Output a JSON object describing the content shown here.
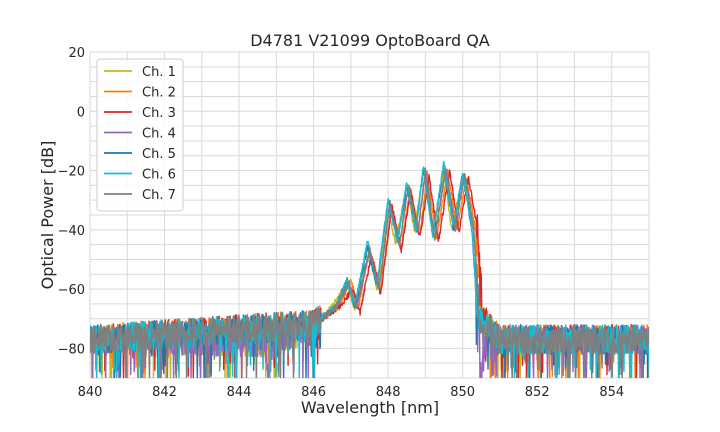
{
  "chart_data": {
    "type": "line",
    "title": "D4781 V21099 OptoBoard QA",
    "xlabel": "Wavelength [nm]",
    "ylabel": "Optical Power [dB]",
    "xlim": [
      840,
      855
    ],
    "ylim": [
      -90,
      20
    ],
    "xticks": [
      840,
      842,
      844,
      846,
      848,
      850,
      852,
      854
    ],
    "yticks": [
      20,
      0,
      -20,
      -40,
      -60,
      -80
    ],
    "xtick_labels": [
      "840",
      "842",
      "844",
      "846",
      "848",
      "850",
      "852",
      "854"
    ],
    "ytick_labels": [
      "20",
      "0",
      "−20",
      "−40",
      "−60",
      "−80"
    ],
    "grid": true,
    "legend_position": "top-left",
    "noise_floor_db": -77,
    "series": [
      {
        "name": "Ch. 1",
        "color": "#bcbd22",
        "peak_offset_nm": -0.1,
        "points": [
          [
            840,
            -77
          ],
          [
            844.9,
            -78
          ],
          [
            845.0,
            -90
          ],
          [
            845.1,
            -78
          ],
          [
            846.0,
            -72
          ],
          [
            846.5,
            -66
          ],
          [
            846.9,
            -58
          ],
          [
            847.1,
            -67
          ],
          [
            847.5,
            -48
          ],
          [
            847.7,
            -60
          ],
          [
            848.0,
            -33
          ],
          [
            848.2,
            -45
          ],
          [
            848.5,
            -25
          ],
          [
            848.7,
            -40
          ],
          [
            848.95,
            -20
          ],
          [
            849.2,
            -42
          ],
          [
            849.5,
            -20
          ],
          [
            849.7,
            -40
          ],
          [
            850.0,
            -22
          ],
          [
            850.3,
            -40
          ],
          [
            850.45,
            -70
          ],
          [
            851,
            -77
          ],
          [
            855,
            -77
          ]
        ]
      },
      {
        "name": "Ch. 2",
        "color": "#ff7f0e",
        "peak_offset_nm": 0.08,
        "points": [
          [
            840,
            -77
          ],
          [
            846.0,
            -72
          ],
          [
            846.7,
            -66
          ],
          [
            847.0,
            -57
          ],
          [
            847.2,
            -66
          ],
          [
            847.5,
            -46
          ],
          [
            847.8,
            -60
          ],
          [
            848.1,
            -32
          ],
          [
            848.35,
            -46
          ],
          [
            848.6,
            -26
          ],
          [
            848.85,
            -42
          ],
          [
            849.05,
            -21
          ],
          [
            849.3,
            -43
          ],
          [
            849.6,
            -20
          ],
          [
            849.85,
            -40
          ],
          [
            850.1,
            -22
          ],
          [
            850.35,
            -40
          ],
          [
            850.5,
            -70
          ],
          [
            851,
            -77
          ],
          [
            855,
            -77
          ]
        ]
      },
      {
        "name": "Ch. 3",
        "color": "#d62728",
        "peak_offset_nm": 0.12,
        "points": [
          [
            840,
            -77
          ],
          [
            846.0,
            -72
          ],
          [
            846.7,
            -66
          ],
          [
            847.05,
            -60
          ],
          [
            847.25,
            -68
          ],
          [
            847.55,
            -48
          ],
          [
            847.8,
            -62
          ],
          [
            848.1,
            -32
          ],
          [
            848.35,
            -47
          ],
          [
            848.6,
            -27
          ],
          [
            848.85,
            -43
          ],
          [
            849.1,
            -22
          ],
          [
            849.35,
            -44
          ],
          [
            849.65,
            -20
          ],
          [
            849.9,
            -41
          ],
          [
            850.15,
            -22
          ],
          [
            850.4,
            -40
          ],
          [
            850.55,
            -70
          ],
          [
            851,
            -77
          ],
          [
            855,
            -77
          ]
        ]
      },
      {
        "name": "Ch. 4",
        "color": "#9467bd",
        "peak_offset_nm": 0.0,
        "points": [
          [
            840,
            -77
          ],
          [
            844.7,
            -78
          ],
          [
            844.8,
            -90
          ],
          [
            844.9,
            -78
          ],
          [
            846.0,
            -72
          ],
          [
            846.6,
            -66
          ],
          [
            846.95,
            -58
          ],
          [
            847.15,
            -67
          ],
          [
            847.5,
            -47
          ],
          [
            847.75,
            -60
          ],
          [
            848.05,
            -31
          ],
          [
            848.3,
            -45
          ],
          [
            848.55,
            -25
          ],
          [
            848.8,
            -41
          ],
          [
            849.0,
            -20
          ],
          [
            849.25,
            -43
          ],
          [
            849.55,
            -19
          ],
          [
            849.8,
            -40
          ],
          [
            850.05,
            -21
          ],
          [
            850.3,
            -40
          ],
          [
            850.45,
            -70
          ],
          [
            850.5,
            -90
          ],
          [
            850.6,
            -78
          ],
          [
            851,
            -77
          ],
          [
            855,
            -77
          ]
        ]
      },
      {
        "name": "Ch. 5",
        "color": "#1f77b4",
        "peak_offset_nm": -0.05,
        "points": [
          [
            840,
            -77
          ],
          [
            846.0,
            -72
          ],
          [
            846.6,
            -66
          ],
          [
            846.9,
            -57
          ],
          [
            847.1,
            -66
          ],
          [
            847.45,
            -46
          ],
          [
            847.7,
            -59
          ],
          [
            848.0,
            -30
          ],
          [
            848.25,
            -44
          ],
          [
            848.5,
            -25
          ],
          [
            848.75,
            -40
          ],
          [
            848.95,
            -19
          ],
          [
            849.2,
            -42
          ],
          [
            849.5,
            -18
          ],
          [
            849.75,
            -40
          ],
          [
            850.0,
            -21
          ],
          [
            850.25,
            -40
          ],
          [
            850.4,
            -70
          ],
          [
            851,
            -77
          ],
          [
            855,
            -77
          ]
        ]
      },
      {
        "name": "Ch. 6",
        "color": "#17becf",
        "peak_offset_nm": -0.02,
        "points": [
          [
            840,
            -77
          ],
          [
            846.0,
            -72
          ],
          [
            846.6,
            -66
          ],
          [
            846.9,
            -57
          ],
          [
            847.1,
            -66
          ],
          [
            847.45,
            -44
          ],
          [
            847.7,
            -58
          ],
          [
            848.0,
            -30
          ],
          [
            848.25,
            -44
          ],
          [
            848.5,
            -24
          ],
          [
            848.75,
            -40
          ],
          [
            848.95,
            -18
          ],
          [
            849.2,
            -42
          ],
          [
            849.5,
            -17
          ],
          [
            849.75,
            -39
          ],
          [
            850.0,
            -21
          ],
          [
            850.25,
            -40
          ],
          [
            850.4,
            -70
          ],
          [
            851,
            -77
          ],
          [
            855,
            -77
          ]
        ]
      },
      {
        "name": "Ch. 7",
        "color": "#7f7f7f",
        "peak_offset_nm": 0.02,
        "points": [
          [
            840,
            -77
          ],
          [
            846.0,
            -72
          ],
          [
            846.6,
            -66
          ],
          [
            846.95,
            -58
          ],
          [
            847.15,
            -66
          ],
          [
            847.5,
            -47
          ],
          [
            847.75,
            -60
          ],
          [
            848.05,
            -31
          ],
          [
            848.3,
            -45
          ],
          [
            848.55,
            -25
          ],
          [
            848.8,
            -41
          ],
          [
            849.0,
            -20
          ],
          [
            849.25,
            -43
          ],
          [
            849.55,
            -19
          ],
          [
            849.8,
            -40
          ],
          [
            850.05,
            -21
          ],
          [
            850.3,
            -40
          ],
          [
            850.45,
            -70
          ],
          [
            851,
            -77
          ],
          [
            855,
            -77
          ]
        ]
      }
    ]
  }
}
